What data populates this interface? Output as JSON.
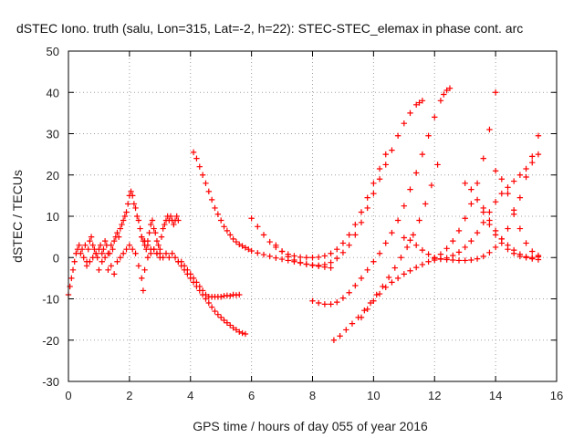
{
  "chart_data": {
    "type": "scatter",
    "title": "dSTEC Iono. truth (salu, Lon=315, Lat=-2, h=22): STEC-STEC_elemax in phase cont. arc",
    "xlabel": "GPS time / hours of day 055 of year 2016",
    "ylabel": "dSTEC  / TECUs",
    "xlim": [
      0,
      16
    ],
    "ylim": [
      -30,
      50
    ],
    "xticks": [
      0,
      2,
      4,
      6,
      8,
      10,
      12,
      14,
      16
    ],
    "yticks": [
      -30,
      -20,
      -10,
      0,
      10,
      20,
      30,
      40,
      50
    ],
    "grid": true,
    "marker": "+",
    "color": "#ff0000",
    "series": [
      {
        "x": [
          0.0,
          0.05,
          0.1,
          0.15,
          0.2,
          0.25,
          0.3,
          0.35,
          0.4,
          0.45,
          0.5,
          0.55,
          0.6,
          0.65,
          0.7,
          0.75,
          0.8,
          0.85,
          0.9,
          0.95,
          1.0,
          1.05,
          1.1,
          1.15,
          1.2,
          1.25,
          1.3,
          1.35,
          1.4,
          1.45,
          1.5,
          1.55,
          1.6,
          1.65,
          1.7,
          1.75,
          1.8,
          1.85,
          1.9,
          1.95,
          2.0,
          2.05,
          2.1,
          2.15,
          2.2,
          2.25,
          2.3,
          2.35,
          2.4,
          2.45,
          2.5,
          2.55,
          2.6,
          2.65,
          2.7,
          2.75,
          2.8,
          2.85,
          2.9,
          2.95,
          3.0,
          3.05,
          3.1,
          3.15,
          3.2,
          3.25,
          3.3,
          3.35,
          3.4,
          3.45,
          3.5,
          3.55,
          3.6
        ],
        "y": [
          -9,
          -7,
          -5,
          -3,
          -1,
          1,
          2,
          3,
          1,
          2,
          0,
          3,
          -1,
          2,
          4,
          5,
          3,
          2,
          1,
          0,
          2,
          3,
          1,
          2,
          4,
          3,
          -3,
          1,
          3,
          2,
          4,
          5,
          6,
          5,
          7,
          8,
          9,
          10,
          11,
          13,
          15,
          16,
          15,
          13,
          12,
          10,
          9,
          7,
          5,
          4,
          3,
          2,
          4,
          6,
          8,
          9,
          7,
          6,
          4,
          3,
          2,
          5,
          7,
          8,
          9,
          10,
          9,
          10,
          9,
          8,
          9,
          10,
          9
        ]
      },
      {
        "x": [
          0.6,
          0.7,
          0.8,
          0.9,
          1.0,
          1.1,
          1.2,
          1.3,
          1.4,
          1.5,
          1.6,
          1.7,
          1.8,
          1.9,
          2.0,
          2.1,
          2.2,
          2.3,
          2.4,
          2.45,
          2.5,
          2.6,
          2.7,
          2.8,
          2.9,
          3.0
        ],
        "y": [
          -2,
          -1,
          0,
          1,
          -3,
          -1,
          0,
          1,
          -2,
          -4,
          -1,
          0,
          1,
          2,
          3,
          2,
          1,
          -2,
          -5,
          -8,
          -3,
          0,
          1,
          2,
          1,
          0
        ]
      },
      {
        "x": [
          2.4,
          2.5,
          2.6,
          2.7,
          2.8,
          2.9,
          3.0,
          3.1,
          3.2,
          3.3,
          3.4,
          3.5,
          3.6,
          3.7,
          3.8,
          3.9,
          4.0,
          4.1,
          4.2,
          4.3,
          4.4,
          4.5,
          4.6,
          4.7,
          4.8,
          4.9,
          5.0,
          5.1,
          5.2,
          5.3,
          5.4,
          5.5,
          5.6
        ],
        "y": [
          5,
          4,
          3,
          2,
          2,
          1,
          1,
          0,
          1,
          0,
          1,
          0,
          -1,
          -1,
          -2,
          -3,
          -4,
          -5,
          -6,
          -7,
          -8,
          -9,
          -9.5,
          -9.5,
          -9.5,
          -9.5,
          -9.5,
          -9.3,
          -9.2,
          -9.3,
          -9.0,
          -9.1,
          -9.0
        ]
      },
      {
        "x": [
          3.6,
          3.7,
          3.8,
          3.9,
          4.0,
          4.1,
          4.2,
          4.3,
          4.4,
          4.5,
          4.6,
          4.7,
          4.8,
          4.9,
          5.0,
          5.1,
          5.2,
          5.3,
          5.4,
          5.5,
          5.6,
          5.7,
          5.8
        ],
        "y": [
          -1,
          -2,
          -3,
          -4,
          -5,
          -6,
          -7,
          -8,
          -9,
          -10,
          -11,
          -12,
          -13,
          -13.8,
          -14.5,
          -15.2,
          -15.8,
          -16.4,
          -17,
          -17.5,
          -18,
          -18.3,
          -18.5
        ]
      },
      {
        "x": [
          4.1,
          4.2,
          4.3,
          4.4,
          4.5,
          4.6,
          4.7,
          4.8,
          4.9,
          5.0,
          5.1,
          5.2,
          5.3,
          5.4,
          5.5,
          5.6,
          5.7,
          5.8,
          5.9,
          6.0,
          6.2,
          6.4,
          6.6,
          6.8,
          7.0,
          7.2,
          7.4,
          7.6,
          7.8,
          8.0,
          8.2,
          8.4,
          8.6
        ],
        "y": [
          25.5,
          24,
          22,
          20,
          18,
          16,
          14,
          12,
          10.5,
          9,
          7.5,
          6.5,
          5.5,
          4.5,
          3.8,
          3.2,
          2.8,
          2.4,
          2.0,
          1.6,
          1.1,
          0.7,
          0.3,
          -0.1,
          -0.4,
          -0.7,
          -1.0,
          -1.3,
          -1.6,
          -1.9,
          -2.1,
          -2.3,
          -2.5
        ]
      },
      {
        "x": [
          6.0,
          6.2,
          6.4,
          6.6,
          6.8,
          7.0,
          7.2,
          7.4,
          7.6,
          7.8,
          8.0,
          8.2,
          8.4,
          8.6,
          8.8,
          9.0,
          9.2,
          9.4,
          9.6,
          9.8,
          10.0,
          10.2,
          10.4
        ],
        "y": [
          9.5,
          7.5,
          5.5,
          3.8,
          2.5,
          1.5,
          0.8,
          0.4,
          0.1,
          0.0,
          0.0,
          0.1,
          0.4,
          1.0,
          2.0,
          3.5,
          5.5,
          8.0,
          11.0,
          14.5,
          18.0,
          21.5,
          25.0
        ]
      },
      {
        "x": [
          6.8,
          7.0,
          7.2,
          7.4,
          7.6,
          7.8,
          8.0,
          8.2,
          8.4,
          8.6,
          8.8,
          9.0,
          9.2,
          9.4,
          9.6,
          9.8,
          10.0,
          10.2,
          10.4,
          10.6,
          10.8,
          11.0,
          11.2,
          11.4,
          11.5,
          11.6
        ],
        "y": [
          3,
          1.5,
          0.2,
          -0.6,
          -1.2,
          -1.6,
          -1.8,
          -1.9,
          -1.7,
          -1.2,
          -0.2,
          1.2,
          3.0,
          5.5,
          8.5,
          12,
          15.5,
          19,
          22.5,
          26,
          29.5,
          32.5,
          35,
          37,
          37.5,
          38
        ]
      },
      {
        "x": [
          8.0,
          8.2,
          8.4,
          8.6,
          8.8,
          9.0,
          9.2,
          9.4,
          9.6,
          9.8,
          10.0,
          10.2,
          10.4,
          10.6,
          10.8,
          11.0,
          11.2,
          11.4,
          11.6,
          11.8,
          12.0,
          12.2,
          12.3,
          12.4,
          12.5
        ],
        "y": [
          -10.5,
          -11,
          -11.3,
          -11.3,
          -10.8,
          -9.8,
          -8.5,
          -6.8,
          -5.0,
          -3.0,
          -1.0,
          1.0,
          3.5,
          6.0,
          9.0,
          12.5,
          16.5,
          20.5,
          25,
          29.5,
          34,
          38,
          39.5,
          40.5,
          41
        ]
      },
      {
        "x": [
          8.7,
          8.9,
          9.1,
          9.3,
          9.5,
          9.7,
          9.9,
          10.1,
          10.3,
          10.5,
          10.7,
          10.9,
          11.1,
          11.3,
          11.5,
          11.7,
          11.9,
          12.1
        ],
        "y": [
          -20,
          -19,
          -17.5,
          -16,
          -14.5,
          -12.8,
          -11,
          -9,
          -7,
          -4.8,
          -2.5,
          0,
          2.5,
          5.5,
          9.0,
          13.0,
          17.5,
          22.5
        ]
      },
      {
        "x": [
          9.6,
          9.8,
          10.0,
          10.2,
          10.4,
          10.6,
          10.8,
          11.0,
          11.2,
          11.4,
          11.6,
          11.8,
          12.0,
          12.2,
          12.4,
          12.6,
          12.8,
          13.0,
          13.2,
          13.4,
          13.6,
          13.8,
          14.0
        ],
        "y": [
          -14.5,
          -12.5,
          -10.5,
          -8.8,
          -7.2,
          -6.0,
          -5.0,
          -4.0,
          -3.2,
          -2.4,
          -1.7,
          -1.0,
          -0.2,
          0.8,
          2.2,
          4.0,
          6.5,
          9.5,
          13,
          18,
          24,
          31,
          40
        ]
      },
      {
        "x": [
          11.0,
          11.2,
          11.4,
          11.6,
          11.8,
          12.0,
          12.2,
          12.4,
          12.6,
          12.8,
          13.0,
          13.2,
          13.4,
          13.6,
          13.8,
          14.0,
          14.2,
          14.4,
          14.6,
          14.8,
          15.0,
          15.2,
          15.4
        ],
        "y": [
          4.8,
          4.2,
          3.0,
          1.8,
          0.8,
          0.0,
          -0.3,
          -0.5,
          -0.6,
          -0.7,
          -0.7,
          -0.6,
          -0.3,
          0.3,
          1.2,
          2.5,
          4.5,
          7.0,
          10.5,
          14.5,
          19.5,
          24.5,
          29.5
        ]
      },
      {
        "x": [
          12.0,
          12.2,
          12.4,
          12.6,
          12.8,
          13.0,
          13.2,
          13.4,
          13.6,
          13.8,
          14.0,
          14.2,
          14.4,
          14.6,
          14.8,
          15.0,
          15.2,
          15.4
        ],
        "y": [
          -0.6,
          -0.4,
          -0.1,
          0.5,
          1.3,
          2.5,
          4.0,
          6.0,
          8.5,
          11,
          13.5,
          15.5,
          17,
          18.5,
          20,
          21.5,
          23,
          25
        ]
      },
      {
        "x": [
          13.0,
          13.2,
          13.4,
          13.6,
          13.8,
          14.0,
          14.2,
          14.4,
          14.6,
          14.8,
          15.0,
          15.2,
          15.4
        ],
        "y": [
          18,
          16.5,
          14.0,
          11.0,
          8.0,
          5.5,
          3.5,
          2.0,
          1.0,
          0.3,
          0.0,
          0.0,
          0.2
        ]
      },
      {
        "x": [
          14.0,
          14.2,
          14.4,
          14.6,
          14.8,
          15.0,
          15.2,
          15.4
        ],
        "y": [
          21,
          19,
          15.5,
          11.5,
          7.0,
          3.5,
          1.5,
          0.5
        ]
      },
      {
        "x": [
          13.6,
          13.8,
          14.0,
          14.2,
          14.4,
          14.6,
          14.8,
          15.0,
          15.2,
          15.4
        ],
        "y": [
          12,
          9,
          6.5,
          4.5,
          3.0,
          1.8,
          0.8,
          0.2,
          -0.3,
          -0.5
        ]
      }
    ]
  }
}
